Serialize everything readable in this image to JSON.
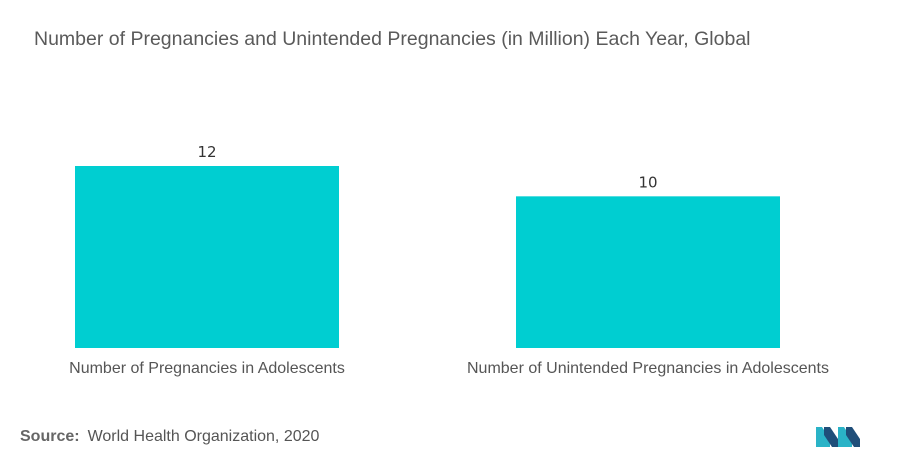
{
  "title": "Number of Pregnancies and Unintended Pregnancies (in Million) Each Year, Global",
  "source": {
    "label": "Source:",
    "text": "World Health Organization, 2020"
  },
  "colors": {
    "bar": "#00CED1",
    "logo_dark": "#1f4e79",
    "logo_teal": "#2ab3c7"
  },
  "chart_data": {
    "type": "bar",
    "title": "Number of Pregnancies and Unintended Pregnancies (in Million) Each Year, Global",
    "categories": [
      "Number of Pregnancies in Adolescents",
      "Number of Unintended Pregnancies in Adolescents"
    ],
    "values": [
      12,
      10
    ],
    "data_labels": [
      "12",
      "10"
    ],
    "xlabel": "",
    "ylabel": "",
    "ylim": [
      0,
      12
    ],
    "grid": false,
    "legend": "none"
  }
}
